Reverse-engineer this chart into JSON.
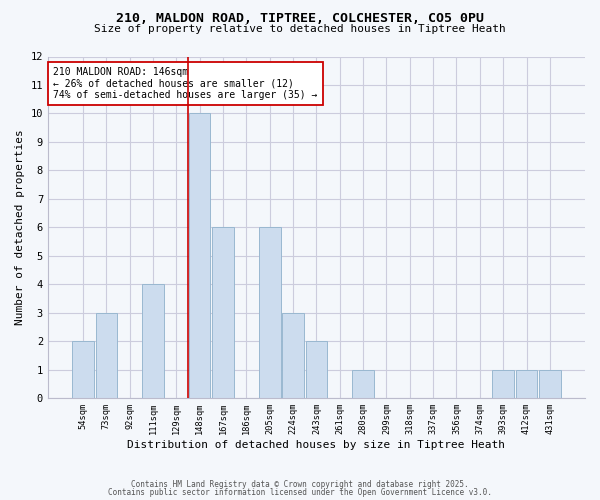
{
  "title1": "210, MALDON ROAD, TIPTREE, COLCHESTER, CO5 0PU",
  "title2": "Size of property relative to detached houses in Tiptree Heath",
  "xlabel": "Distribution of detached houses by size in Tiptree Heath",
  "ylabel": "Number of detached properties",
  "bar_color": "#ccdcee",
  "bar_edgecolor": "#99b8d0",
  "grid_color": "#ccccdd",
  "background_color": "#f4f7fb",
  "plot_bg_color": "#f4f7fb",
  "categories": [
    "54sqm",
    "73sqm",
    "92sqm",
    "111sqm",
    "129sqm",
    "148sqm",
    "167sqm",
    "186sqm",
    "205sqm",
    "224sqm",
    "243sqm",
    "261sqm",
    "280sqm",
    "299sqm",
    "318sqm",
    "337sqm",
    "356sqm",
    "374sqm",
    "393sqm",
    "412sqm",
    "431sqm"
  ],
  "values": [
    2,
    3,
    0,
    4,
    0,
    10,
    6,
    0,
    6,
    3,
    2,
    0,
    1,
    0,
    0,
    0,
    0,
    0,
    1,
    1,
    1
  ],
  "highlight_index": 5,
  "highlight_line_color": "#cc0000",
  "annotation_text": "210 MALDON ROAD: 146sqm\n← 26% of detached houses are smaller (12)\n74% of semi-detached houses are larger (35) →",
  "annotation_box_edgecolor": "#cc0000",
  "annotation_box_facecolor": "#ffffff",
  "ylim": [
    0,
    12
  ],
  "yticks": [
    0,
    1,
    2,
    3,
    4,
    5,
    6,
    7,
    8,
    9,
    10,
    11,
    12
  ],
  "footer1": "Contains HM Land Registry data © Crown copyright and database right 2025.",
  "footer2": "Contains public sector information licensed under the Open Government Licence v3.0."
}
